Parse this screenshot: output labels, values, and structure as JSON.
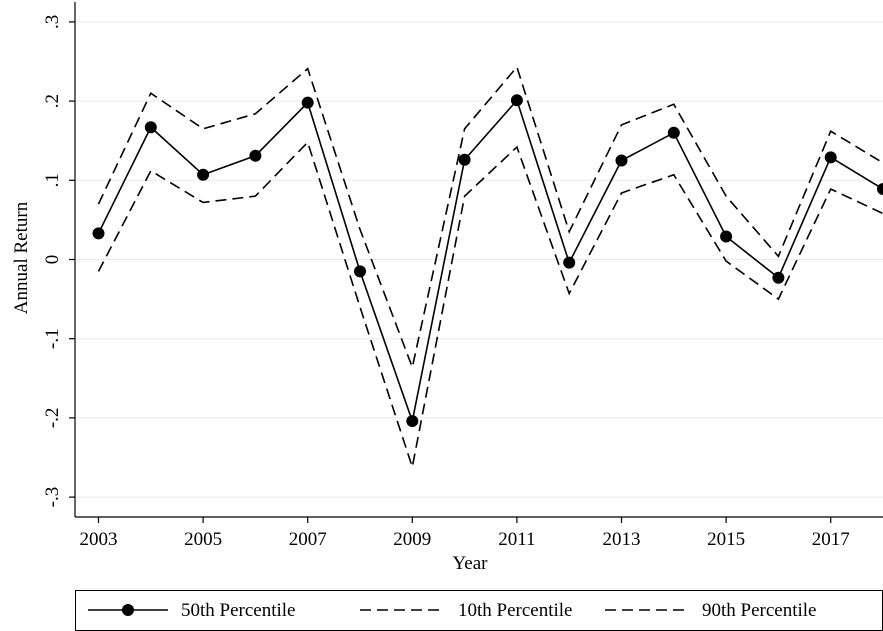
{
  "chart_data": {
    "type": "line",
    "title": "",
    "xlabel": "Year",
    "ylabel": "Annual Return",
    "xlim": [
      2003,
      2018
    ],
    "ylim": [
      -0.3,
      0.3
    ],
    "x": [
      2003,
      2004,
      2005,
      2006,
      2007,
      2008,
      2009,
      2010,
      2011,
      2012,
      2013,
      2014,
      2015,
      2016,
      2017,
      2018
    ],
    "x_ticks": [
      2003,
      2005,
      2007,
      2009,
      2011,
      2013,
      2015,
      2017
    ],
    "x_tick_labels": [
      "2003",
      "2005",
      "2007",
      "2009",
      "2011",
      "2013",
      "2015",
      "2017"
    ],
    "y_ticks": [
      -0.3,
      -0.2,
      -0.1,
      0,
      0.1,
      0.2,
      0.3
    ],
    "y_tick_labels": [
      "-.3",
      "-.2",
      "-.1",
      "0",
      ".1",
      ".2",
      ".3"
    ],
    "grid": "horizontal",
    "legend_position": "bottom",
    "series": [
      {
        "name": "50th Percentile",
        "style": "solid-with-markers",
        "color": "#000000",
        "values": [
          0.033,
          0.167,
          0.107,
          0.131,
          0.198,
          -0.015,
          -0.204,
          0.126,
          0.201,
          -0.004,
          0.125,
          0.16,
          0.029,
          -0.023,
          0.129,
          0.089
        ]
      },
      {
        "name": "10th Percentile",
        "style": "dashed",
        "color": "#000000",
        "values": [
          -0.015,
          0.112,
          0.072,
          0.08,
          0.148,
          -0.06,
          -0.262,
          0.08,
          0.142,
          -0.043,
          0.084,
          0.107,
          -0.002,
          -0.05,
          0.089,
          0.058
        ]
      },
      {
        "name": "90th Percentile",
        "style": "dashed",
        "color": "#000000",
        "values": [
          0.07,
          0.21,
          0.165,
          0.184,
          0.241,
          0.038,
          -0.136,
          0.165,
          0.243,
          0.035,
          0.17,
          0.196,
          0.08,
          0.004,
          0.162,
          0.122
        ]
      }
    ]
  },
  "colors": {
    "background": "#ffffff",
    "grid": "#eaeaea",
    "ink": "#000000"
  }
}
